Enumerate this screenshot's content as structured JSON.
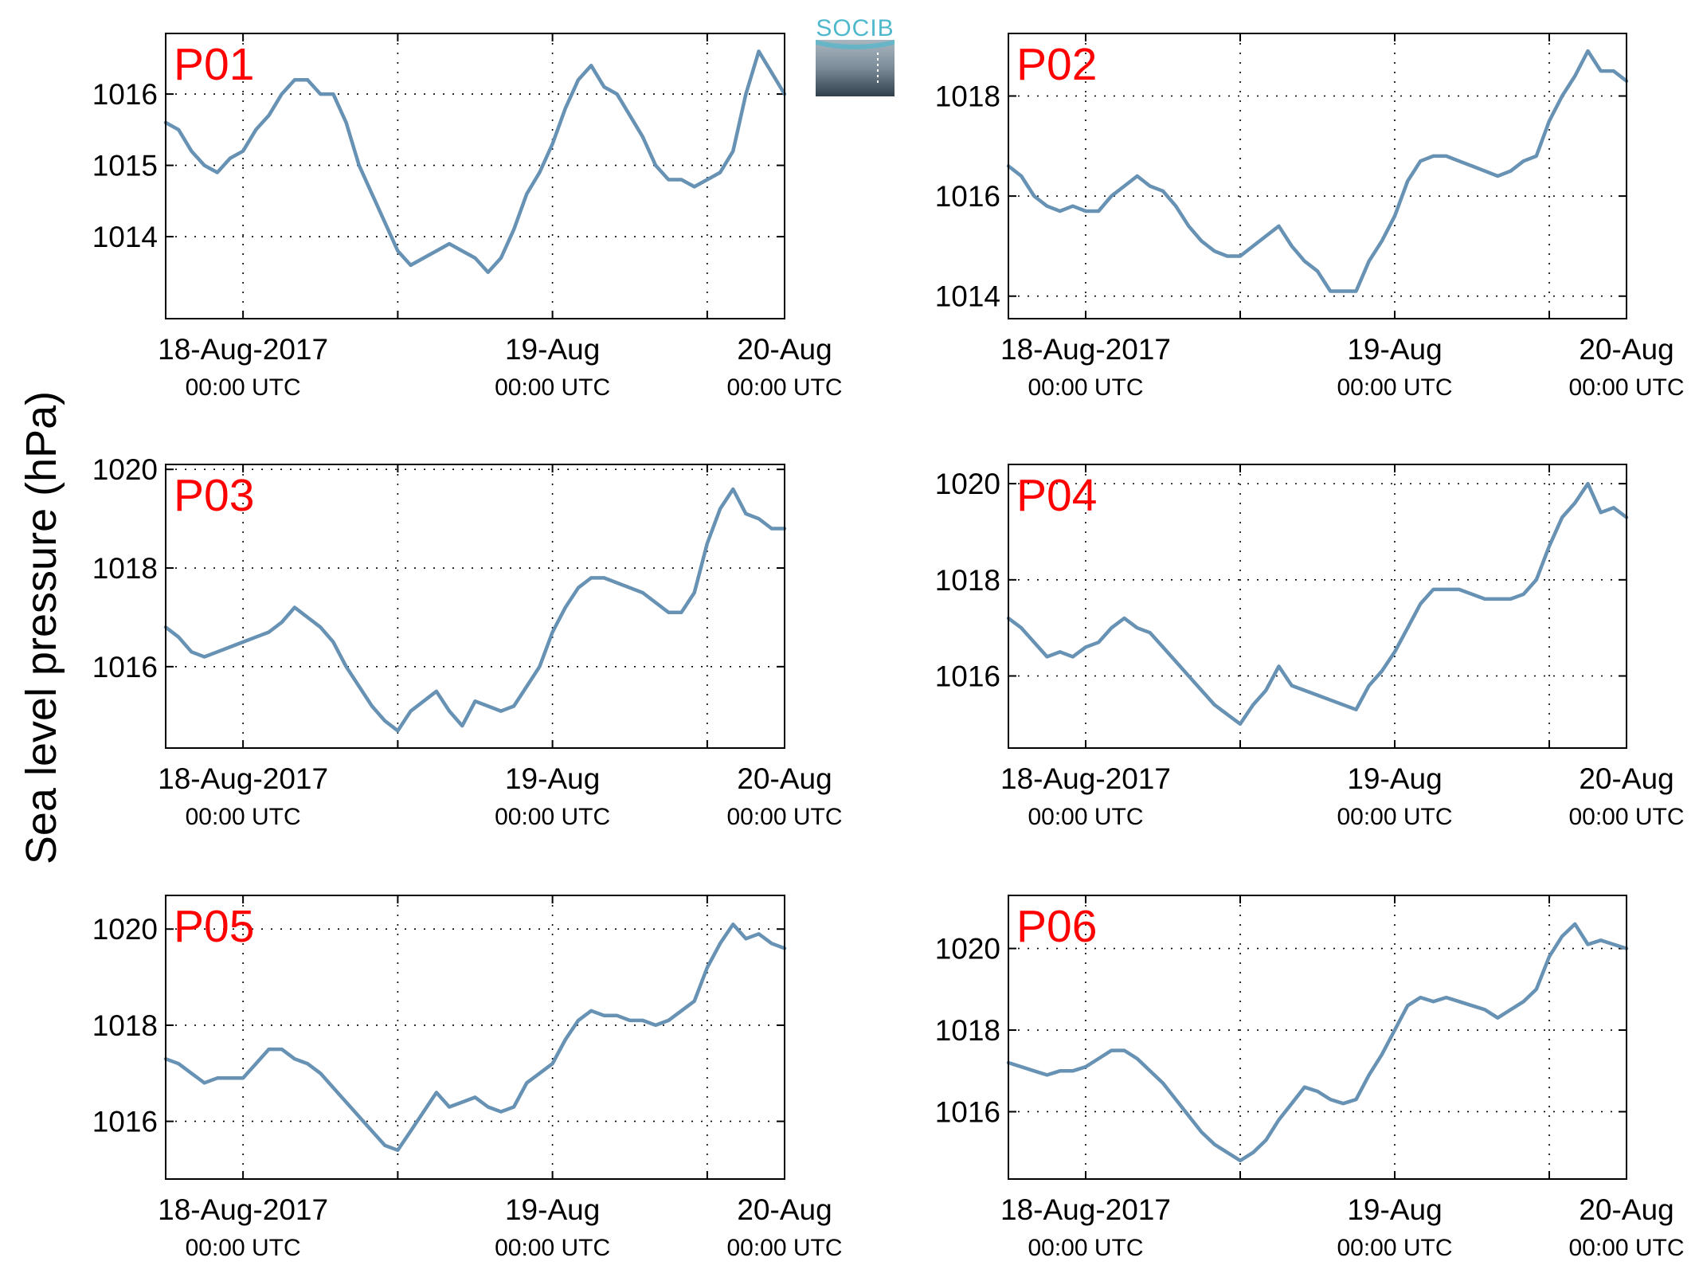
{
  "figure": {
    "ylabel": "Sea level pressure (hPa)",
    "logo_text": "SOCIB",
    "colors": {
      "line": "#6792b4",
      "panel_title": "#ff0000",
      "axes": "#000000",
      "logo_text": "#4fb8cc"
    }
  },
  "chart_data": [
    {
      "type": "line",
      "title": "P01",
      "x_ticks": [
        "18-Aug-2017",
        "19-Aug",
        "20-Aug"
      ],
      "x_tick_sublabels": [
        "00:00 UTC",
        "00:00 UTC",
        "00:00 UTC"
      ],
      "y_ticks": [
        1014,
        1015,
        1016
      ],
      "ylim": [
        1012.85,
        1016.85
      ],
      "x_unit": "hours since 18-Aug-2017 00:00 UTC",
      "xlim": [
        -6,
        42
      ],
      "grid": true,
      "series": [
        {
          "x": [
            -6,
            -5,
            -4,
            -3,
            -2,
            -1,
            0,
            1,
            2,
            3,
            4,
            5,
            6,
            7,
            8,
            9,
            10,
            11,
            12,
            13,
            14,
            15,
            16,
            17,
            18,
            19,
            20,
            21,
            22,
            23,
            24,
            25,
            26,
            27,
            28,
            29,
            30,
            31,
            32,
            33,
            34,
            35,
            36,
            37,
            38,
            39,
            40,
            41,
            42
          ],
          "values": [
            1015.6,
            1015.5,
            1015.2,
            1015.0,
            1014.9,
            1015.1,
            1015.2,
            1015.5,
            1015.7,
            1016.0,
            1016.2,
            1016.2,
            1016.0,
            1016.0,
            1015.6,
            1015.0,
            1014.6,
            1014.2,
            1013.8,
            1013.6,
            1013.7,
            1013.8,
            1013.9,
            1013.8,
            1013.7,
            1013.5,
            1013.7,
            1014.1,
            1014.6,
            1014.9,
            1015.3,
            1015.8,
            1016.2,
            1016.4,
            1016.1,
            1016.0,
            1015.7,
            1015.4,
            1015.0,
            1014.8,
            1014.8,
            1014.7,
            1014.8,
            1014.9,
            1015.2,
            1016.0,
            1016.6,
            1016.3,
            1016.0
          ]
        }
      ]
    },
    {
      "type": "line",
      "title": "P02",
      "x_ticks": [
        "18-Aug-2017",
        "19-Aug",
        "20-Aug"
      ],
      "x_tick_sublabels": [
        "00:00 UTC",
        "00:00 UTC",
        "00:00 UTC"
      ],
      "y_ticks": [
        1014,
        1016,
        1018
      ],
      "ylim": [
        1013.55,
        1019.25
      ],
      "x_unit": "hours since 18-Aug-2017 00:00 UTC",
      "xlim": [
        -6,
        42
      ],
      "grid": true,
      "series": [
        {
          "x": [
            -6,
            -5,
            -4,
            -3,
            -2,
            -1,
            0,
            1,
            2,
            3,
            4,
            5,
            6,
            7,
            8,
            9,
            10,
            11,
            12,
            13,
            14,
            15,
            16,
            17,
            18,
            19,
            20,
            21,
            22,
            23,
            24,
            25,
            26,
            27,
            28,
            29,
            30,
            31,
            32,
            33,
            34,
            35,
            36,
            37,
            38,
            39,
            40,
            41,
            42
          ],
          "values": [
            1016.6,
            1016.4,
            1016.0,
            1015.8,
            1015.7,
            1015.8,
            1015.7,
            1015.7,
            1016.0,
            1016.2,
            1016.4,
            1016.2,
            1016.1,
            1015.8,
            1015.4,
            1015.1,
            1014.9,
            1014.8,
            1014.8,
            1015.0,
            1015.2,
            1015.4,
            1015.0,
            1014.7,
            1014.5,
            1014.1,
            1014.1,
            1014.1,
            1014.7,
            1015.1,
            1015.6,
            1016.3,
            1016.7,
            1016.8,
            1016.8,
            1016.7,
            1016.6,
            1016.5,
            1016.4,
            1016.5,
            1016.7,
            1016.8,
            1017.5,
            1018.0,
            1018.4,
            1018.9,
            1018.5,
            1018.5,
            1018.3
          ]
        }
      ]
    },
    {
      "type": "line",
      "title": "P03",
      "x_ticks": [
        "18-Aug-2017",
        "19-Aug",
        "20-Aug"
      ],
      "x_tick_sublabels": [
        "00:00 UTC",
        "00:00 UTC",
        "00:00 UTC"
      ],
      "y_ticks": [
        1016,
        1018,
        1020
      ],
      "ylim": [
        1014.35,
        1020.1
      ],
      "x_unit": "hours since 18-Aug-2017 00:00 UTC",
      "xlim": [
        -6,
        42
      ],
      "grid": true,
      "series": [
        {
          "x": [
            -6,
            -5,
            -4,
            -3,
            -2,
            -1,
            0,
            1,
            2,
            3,
            4,
            5,
            6,
            7,
            8,
            9,
            10,
            11,
            12,
            13,
            14,
            15,
            16,
            17,
            18,
            19,
            20,
            21,
            22,
            23,
            24,
            25,
            26,
            27,
            28,
            29,
            30,
            31,
            32,
            33,
            34,
            35,
            36,
            37,
            38,
            39,
            40,
            41,
            42
          ],
          "values": [
            1016.8,
            1016.6,
            1016.3,
            1016.2,
            1016.3,
            1016.4,
            1016.5,
            1016.6,
            1016.7,
            1016.9,
            1017.2,
            1017.0,
            1016.8,
            1016.5,
            1016.0,
            1015.6,
            1015.2,
            1014.9,
            1014.7,
            1015.1,
            1015.3,
            1015.5,
            1015.1,
            1014.8,
            1015.3,
            1015.2,
            1015.1,
            1015.2,
            1015.6,
            1016.0,
            1016.7,
            1017.2,
            1017.6,
            1017.8,
            1017.8,
            1017.7,
            1017.6,
            1017.5,
            1017.3,
            1017.1,
            1017.1,
            1017.5,
            1018.5,
            1019.2,
            1019.6,
            1019.1,
            1019.0,
            1018.8,
            1018.8
          ]
        }
      ]
    },
    {
      "type": "line",
      "title": "P04",
      "x_ticks": [
        "18-Aug-2017",
        "19-Aug",
        "20-Aug"
      ],
      "x_tick_sublabels": [
        "00:00 UTC",
        "00:00 UTC",
        "00:00 UTC"
      ],
      "y_ticks": [
        1016,
        1018,
        1020
      ],
      "ylim": [
        1014.5,
        1020.4
      ],
      "x_unit": "hours since 18-Aug-2017 00:00 UTC",
      "xlim": [
        -6,
        42
      ],
      "grid": true,
      "series": [
        {
          "x": [
            -6,
            -5,
            -4,
            -3,
            -2,
            -1,
            0,
            1,
            2,
            3,
            4,
            5,
            6,
            7,
            8,
            9,
            10,
            11,
            12,
            13,
            14,
            15,
            16,
            17,
            18,
            19,
            20,
            21,
            22,
            23,
            24,
            25,
            26,
            27,
            28,
            29,
            30,
            31,
            32,
            33,
            34,
            35,
            36,
            37,
            38,
            39,
            40,
            41,
            42
          ],
          "values": [
            1017.2,
            1017.0,
            1016.7,
            1016.4,
            1016.5,
            1016.4,
            1016.6,
            1016.7,
            1017.0,
            1017.2,
            1017.0,
            1016.9,
            1016.6,
            1016.3,
            1016.0,
            1015.7,
            1015.4,
            1015.2,
            1015.0,
            1015.4,
            1015.7,
            1016.2,
            1015.8,
            1015.7,
            1015.6,
            1015.5,
            1015.4,
            1015.3,
            1015.8,
            1016.1,
            1016.5,
            1017.0,
            1017.5,
            1017.8,
            1017.8,
            1017.8,
            1017.7,
            1017.6,
            1017.6,
            1017.6,
            1017.7,
            1018.0,
            1018.7,
            1019.3,
            1019.6,
            1020.0,
            1019.4,
            1019.5,
            1019.3
          ]
        }
      ]
    },
    {
      "type": "line",
      "title": "P05",
      "x_ticks": [
        "18-Aug-2017",
        "19-Aug",
        "20-Aug"
      ],
      "x_tick_sublabels": [
        "00:00 UTC",
        "00:00 UTC",
        "00:00 UTC"
      ],
      "y_ticks": [
        1016,
        1018,
        1020
      ],
      "ylim": [
        1014.8,
        1020.7
      ],
      "x_unit": "hours since 18-Aug-2017 00:00 UTC",
      "xlim": [
        -6,
        42
      ],
      "grid": true,
      "series": [
        {
          "x": [
            -6,
            -5,
            -4,
            -3,
            -2,
            -1,
            0,
            1,
            2,
            3,
            4,
            5,
            6,
            7,
            8,
            9,
            10,
            11,
            12,
            13,
            14,
            15,
            16,
            17,
            18,
            19,
            20,
            21,
            22,
            23,
            24,
            25,
            26,
            27,
            28,
            29,
            30,
            31,
            32,
            33,
            34,
            35,
            36,
            37,
            38,
            39,
            40,
            41,
            42
          ],
          "values": [
            1017.3,
            1017.2,
            1017.0,
            1016.8,
            1016.9,
            1016.9,
            1016.9,
            1017.2,
            1017.5,
            1017.5,
            1017.3,
            1017.2,
            1017.0,
            1016.7,
            1016.4,
            1016.1,
            1015.8,
            1015.5,
            1015.4,
            1015.8,
            1016.2,
            1016.6,
            1016.3,
            1016.4,
            1016.5,
            1016.3,
            1016.2,
            1016.3,
            1016.8,
            1017.0,
            1017.2,
            1017.7,
            1018.1,
            1018.3,
            1018.2,
            1018.2,
            1018.1,
            1018.1,
            1018.0,
            1018.1,
            1018.3,
            1018.5,
            1019.2,
            1019.7,
            1020.1,
            1019.8,
            1019.9,
            1019.7,
            1019.6
          ]
        }
      ]
    },
    {
      "type": "line",
      "title": "P06",
      "x_ticks": [
        "18-Aug-2017",
        "19-Aug",
        "20-Aug"
      ],
      "x_tick_sublabels": [
        "00:00 UTC",
        "00:00 UTC",
        "00:00 UTC"
      ],
      "y_ticks": [
        1016,
        1018,
        1020
      ],
      "ylim": [
        1014.35,
        1021.3
      ],
      "x_unit": "hours since 18-Aug-2017 00:00 UTC",
      "xlim": [
        -6,
        42
      ],
      "grid": true,
      "series": [
        {
          "x": [
            -6,
            -5,
            -4,
            -3,
            -2,
            -1,
            0,
            1,
            2,
            3,
            4,
            5,
            6,
            7,
            8,
            9,
            10,
            11,
            12,
            13,
            14,
            15,
            16,
            17,
            18,
            19,
            20,
            21,
            22,
            23,
            24,
            25,
            26,
            27,
            28,
            29,
            30,
            31,
            32,
            33,
            34,
            35,
            36,
            37,
            38,
            39,
            40,
            41,
            42
          ],
          "values": [
            1017.2,
            1017.1,
            1017.0,
            1016.9,
            1017.0,
            1017.0,
            1017.1,
            1017.3,
            1017.5,
            1017.5,
            1017.3,
            1017.0,
            1016.7,
            1016.3,
            1015.9,
            1015.5,
            1015.2,
            1015.0,
            1014.8,
            1015.0,
            1015.3,
            1015.8,
            1016.2,
            1016.6,
            1016.5,
            1016.3,
            1016.2,
            1016.3,
            1016.9,
            1017.4,
            1018.0,
            1018.6,
            1018.8,
            1018.7,
            1018.8,
            1018.7,
            1018.6,
            1018.5,
            1018.3,
            1018.5,
            1018.7,
            1019.0,
            1019.8,
            1020.3,
            1020.6,
            1020.1,
            1020.2,
            1020.1,
            1020.0
          ]
        }
      ]
    }
  ]
}
